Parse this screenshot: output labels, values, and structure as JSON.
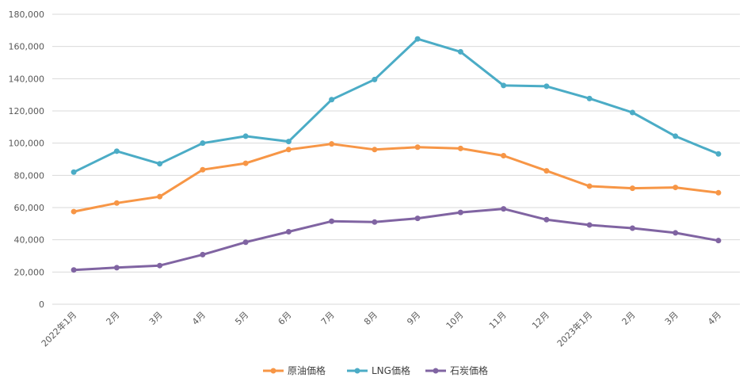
{
  "chart_data": {
    "type": "line",
    "title": "",
    "xlabel": "",
    "ylabel": "",
    "ylim": [
      0,
      180000
    ],
    "yticks": [
      0,
      20000,
      40000,
      60000,
      80000,
      100000,
      120000,
      140000,
      160000,
      180000
    ],
    "ytick_labels": [
      "0",
      "20,000",
      "40,000",
      "60,000",
      "80,000",
      "100,000",
      "120,000",
      "140,000",
      "160,000",
      "180,000"
    ],
    "grid": true,
    "legend_position": "bottom",
    "categories": [
      "2022年1月",
      "2月",
      "3月",
      "4月",
      "5月",
      "6月",
      "7月",
      "8月",
      "9月",
      "10月",
      "11月",
      "12月",
      "2023年1月",
      "2月",
      "3月",
      "4月"
    ],
    "series": [
      {
        "name": "原油価格",
        "color": "#f79646",
        "values": [
          57500,
          62800,
          66800,
          83500,
          87500,
          96000,
          99500,
          96000,
          97500,
          96700,
          92200,
          82800,
          73300,
          72000,
          72500,
          69200
        ]
      },
      {
        "name": "LNG価格",
        "color": "#4bacc6",
        "values": [
          82000,
          95000,
          87200,
          100000,
          104300,
          101000,
          127000,
          139500,
          164700,
          156700,
          135800,
          135300,
          127700,
          119000,
          104300,
          93300
        ]
      },
      {
        "name": "石炭価格",
        "color": "#8064a2",
        "values": [
          21300,
          22700,
          24000,
          30800,
          38500,
          45000,
          51500,
          51000,
          53300,
          57000,
          59200,
          52500,
          49200,
          47200,
          44300,
          39500
        ]
      }
    ]
  }
}
